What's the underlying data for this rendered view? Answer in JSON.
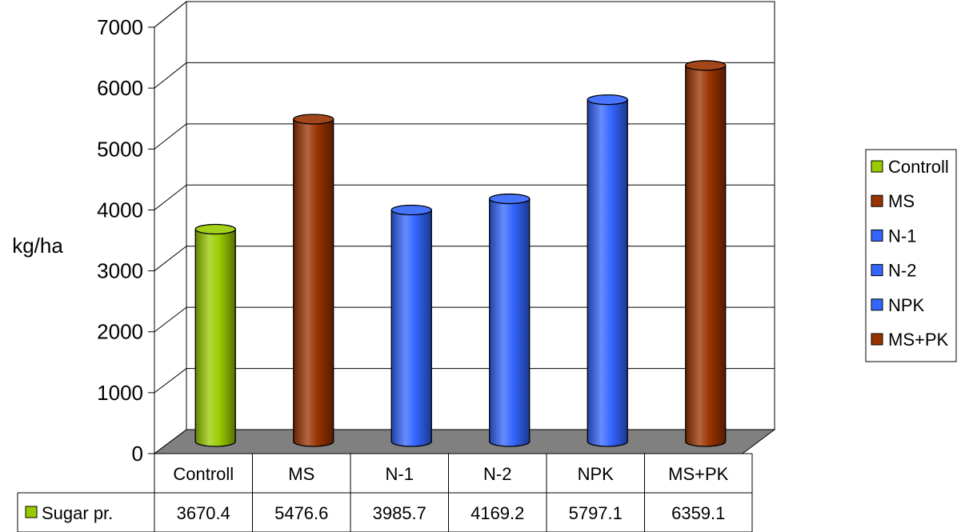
{
  "chart_data": {
    "type": "bar",
    "ylabel": "kg/ha",
    "ylim": [
      0,
      7000
    ],
    "ytick_step": 1000,
    "grid": true,
    "legend_placement": "right",
    "categories": [
      "Controll",
      "MS",
      "N-1",
      "N-2",
      "NPK",
      "MS+PK"
    ],
    "series": [
      {
        "name": "Sugar pr.",
        "values": [
          3670.4,
          5476.6,
          3985.7,
          4169.2,
          5797.1,
          6359.1
        ]
      }
    ],
    "data_table_values": [
      "3670.4",
      "5476.6",
      "3985.7",
      "4169.2",
      "5797.1",
      "6359.1"
    ],
    "legend": [
      "Controll",
      "MS",
      "N-1",
      "N-2",
      "NPK",
      "MS+PK"
    ],
    "bar_colors": [
      "#99cc00",
      "#993300",
      "#3366ff",
      "#3366ff",
      "#3366ff",
      "#993300"
    ],
    "table_key_color": "#99cc00"
  }
}
